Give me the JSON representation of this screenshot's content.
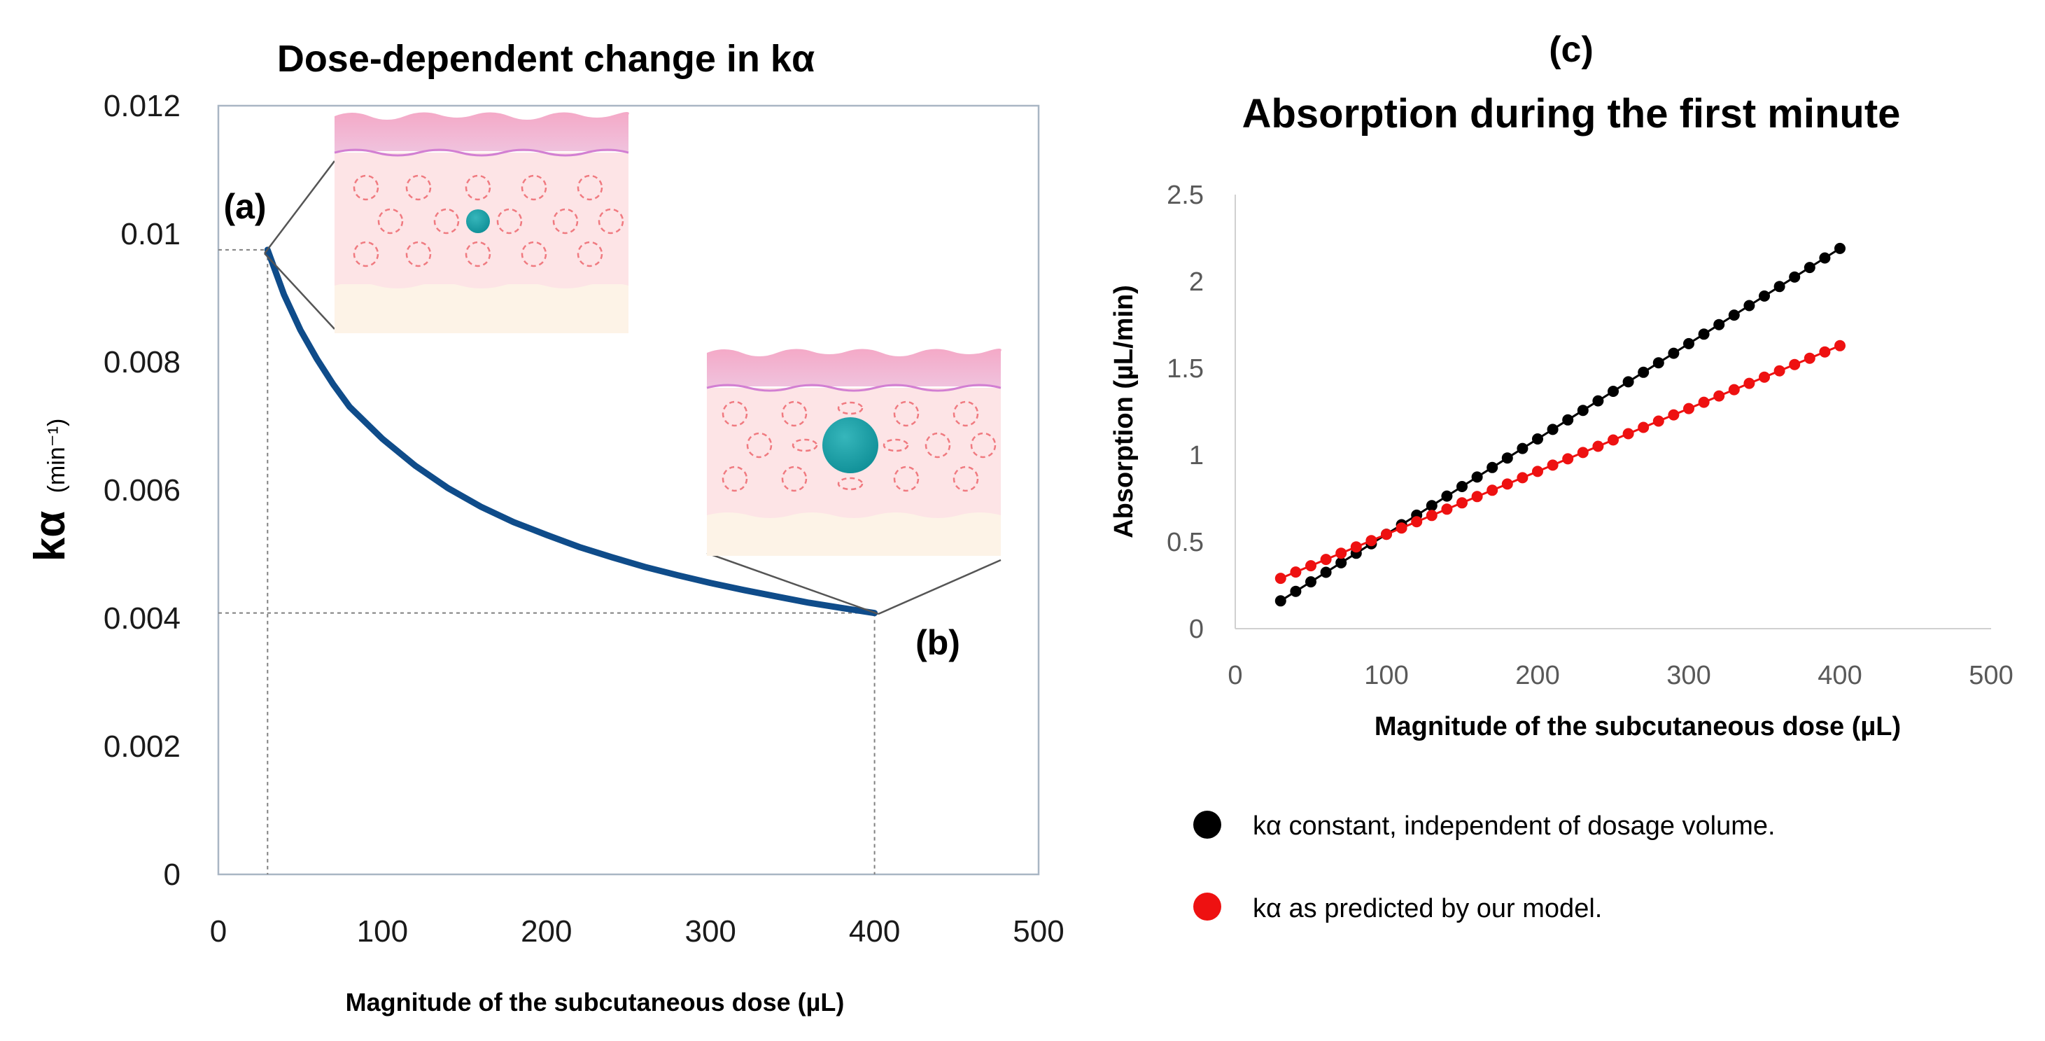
{
  "chart_data": [
    {
      "type": "line",
      "title": "Dose-dependent change in kα",
      "xlabel": "Magnitude of the subcutaneous dose (µL)",
      "ylabel": "kα",
      "ylabel_unit": "(min⁻¹)",
      "xlim": [
        0,
        500
      ],
      "ylim": [
        0,
        0.012
      ],
      "x_ticks": [
        "0",
        "100",
        "200",
        "300",
        "400",
        "500"
      ],
      "y_ticks": [
        "0",
        "0.002",
        "0.004",
        "0.006",
        "0.008",
        "0.01",
        "0.012"
      ],
      "series": [
        {
          "name": "kα",
          "color": "#0f4c8a",
          "x": [
            30,
            40,
            50,
            60,
            70,
            80,
            100,
            120,
            140,
            160,
            180,
            200,
            220,
            240,
            260,
            280,
            300,
            320,
            340,
            360,
            380,
            400
          ],
          "y": [
            0.00975,
            0.00905,
            0.0085,
            0.00805,
            0.00765,
            0.0073,
            0.0068,
            0.00638,
            0.00603,
            0.00574,
            0.0055,
            0.0053,
            0.00511,
            0.00495,
            0.0048,
            0.00467,
            0.00455,
            0.00444,
            0.00434,
            0.00424,
            0.00416,
            0.00408
          ]
        }
      ],
      "annotations": [
        "(a)",
        "(b)"
      ],
      "guide_points": [
        {
          "x": 30,
          "y": 0.00975
        },
        {
          "x": 400,
          "y": 0.00408
        }
      ]
    },
    {
      "type": "scatter",
      "panel_label": "(c)",
      "title": "Absorption during the first minute",
      "xlabel": "Magnitude of the subcutaneous dose (µL)",
      "ylabel": "Absorption (µL/min)",
      "xlim": [
        0,
        500
      ],
      "ylim": [
        0,
        2.5
      ],
      "x_ticks": [
        "0",
        "100",
        "200",
        "300",
        "400",
        "500"
      ],
      "y_ticks": [
        "0",
        "0.5",
        "1",
        "1.5",
        "2",
        "2.5"
      ],
      "x_start": 30,
      "x_end": 400,
      "x_step": 10,
      "series": [
        {
          "name": "kα constant, independent of dosage volume.",
          "color": "#000000",
          "y_start": 0.16,
          "y_end": 2.19
        },
        {
          "name": "kα as predicted by our model.",
          "color": "#ee1111",
          "y_start": 0.29,
          "y_end": 1.63
        }
      ]
    }
  ]
}
